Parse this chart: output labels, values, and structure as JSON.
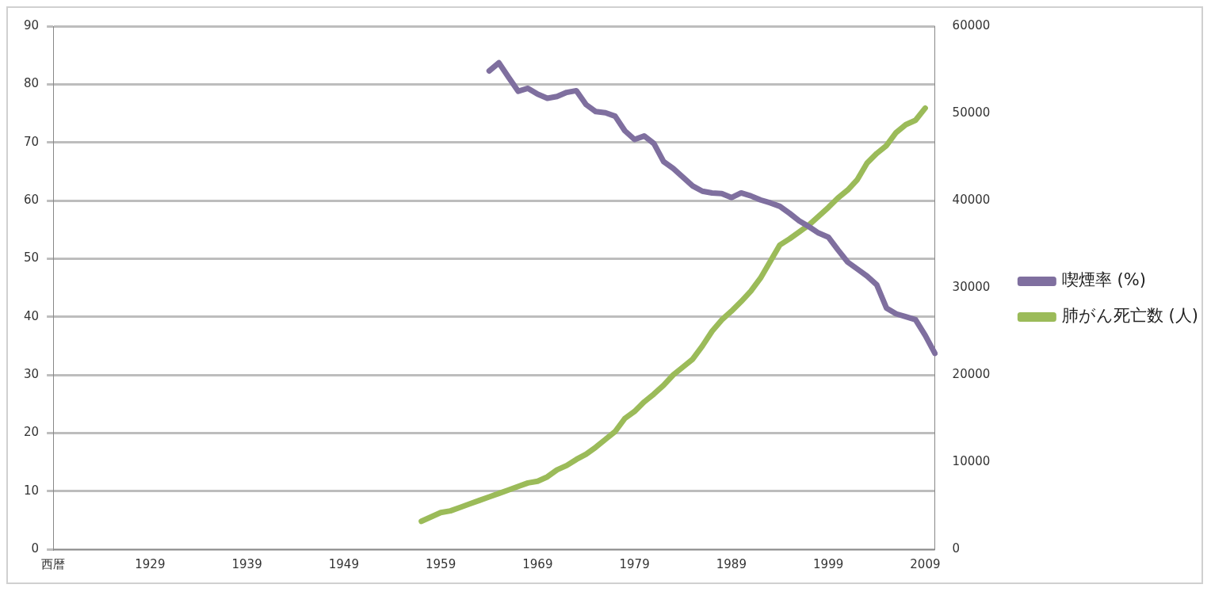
{
  "chart_data": {
    "type": "line",
    "categories": [
      "西暦",
      null,
      null,
      null,
      null,
      null,
      null,
      null,
      null,
      null,
      "1929",
      null,
      null,
      null,
      null,
      null,
      null,
      null,
      null,
      null,
      "1939",
      null,
      null,
      null,
      null,
      null,
      null,
      null,
      null,
      null,
      "1949",
      null,
      null,
      null,
      null,
      null,
      null,
      null,
      null,
      null,
      "1959",
      null,
      null,
      null,
      null,
      null,
      null,
      null,
      null,
      null,
      "1969",
      null,
      null,
      null,
      null,
      null,
      null,
      null,
      null,
      null,
      "1979",
      null,
      null,
      null,
      null,
      null,
      null,
      null,
      null,
      null,
      "1989",
      null,
      null,
      null,
      null,
      null,
      null,
      null,
      null,
      null,
      "1999",
      null,
      null,
      null,
      null,
      null,
      null,
      null,
      null,
      null,
      "2009",
      null
    ],
    "series": [
      {
        "name": "喫煙率 (%)",
        "color": "#7f6f9f",
        "values": [
          null,
          null,
          null,
          null,
          null,
          null,
          null,
          null,
          null,
          null,
          null,
          null,
          null,
          null,
          null,
          null,
          null,
          null,
          null,
          null,
          null,
          null,
          null,
          null,
          null,
          null,
          null,
          null,
          null,
          null,
          null,
          null,
          null,
          null,
          null,
          null,
          null,
          null,
          null,
          null,
          null,
          null,
          null,
          null,
          null,
          82.3,
          83.7,
          81.2,
          78.8,
          79.3,
          78.3,
          77.6,
          77.9,
          78.6,
          78.9,
          76.5,
          75.3,
          75.1,
          74.5,
          72.0,
          70.5,
          71.1,
          69.8,
          66.7,
          65.5,
          64.0,
          62.5,
          61.6,
          61.3,
          61.2,
          60.5,
          61.3,
          60.8,
          60.1,
          59.6,
          59.0,
          57.8,
          56.5,
          55.5,
          54.4,
          53.7,
          51.5,
          49.4,
          48.2,
          47.0,
          45.5,
          41.5,
          40.5,
          40.0,
          39.5,
          36.8,
          33.7
        ]
      },
      {
        "name": "肺がん死亡数 (人)",
        "color": "#9bbb59",
        "axis": "y2",
        "values": [
          null,
          null,
          null,
          null,
          null,
          null,
          null,
          null,
          null,
          null,
          null,
          null,
          null,
          null,
          null,
          null,
          null,
          null,
          null,
          null,
          null,
          null,
          null,
          null,
          null,
          null,
          null,
          null,
          null,
          null,
          null,
          null,
          null,
          null,
          null,
          null,
          null,
          null,
          3200,
          3700,
          4200,
          4400,
          4800,
          5200,
          5600,
          6000,
          6400,
          6800,
          7200,
          7600,
          7800,
          8300,
          9100,
          9600,
          10300,
          10900,
          11700,
          12600,
          13500,
          15000,
          15800,
          16900,
          17800,
          18800,
          20000,
          20900,
          21800,
          23300,
          25000,
          26300,
          27300,
          28400,
          29600,
          31100,
          33000,
          34900,
          35600,
          36400,
          37200,
          38200,
          39200,
          40300,
          41200,
          42400,
          44300,
          45400,
          46300,
          47800,
          48700,
          49200,
          50600,
          null
        ]
      }
    ],
    "ylim": [
      0,
      90
    ],
    "yticks": [
      0,
      10,
      20,
      30,
      40,
      50,
      60,
      70,
      80,
      90
    ],
    "y2lim": [
      0,
      60000
    ],
    "y2ticks": [
      0,
      10000,
      20000,
      30000,
      40000,
      50000,
      60000
    ],
    "grid": "y",
    "legend": "right",
    "marker": "none",
    "line_style": "solid"
  }
}
